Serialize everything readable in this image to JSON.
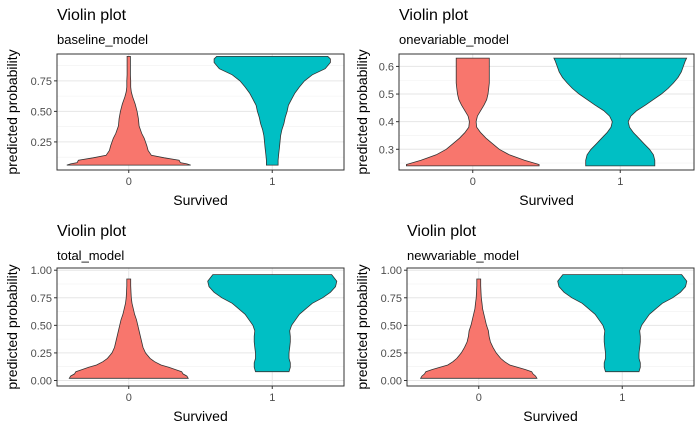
{
  "chart_data": [
    {
      "type": "violin",
      "title": "Violin plot",
      "subtitle": "baseline_model",
      "xlabel": "Survived",
      "ylabel": "predicted probability",
      "categories": [
        "0",
        "1"
      ],
      "ylim": [
        0.02,
        0.97
      ],
      "yticks": [
        0.25,
        0.5,
        0.75
      ],
      "ytick_labels": [
        "0.25",
        "0.50",
        "0.75"
      ],
      "grid": true,
      "colors": [
        "#F8766D",
        "#00BFC4"
      ],
      "violins": [
        {
          "category": "0",
          "y": [
            0.06,
            0.07,
            0.08,
            0.1,
            0.12,
            0.14,
            0.18,
            0.22,
            0.28,
            0.32,
            0.38,
            0.44,
            0.5,
            0.56,
            0.62,
            0.66,
            0.7,
            0.75,
            0.8,
            0.86,
            0.92,
            0.95
          ],
          "width": [
            0.96,
            0.9,
            0.8,
            0.78,
            0.55,
            0.35,
            0.3,
            0.28,
            0.24,
            0.2,
            0.16,
            0.15,
            0.13,
            0.1,
            0.06,
            0.04,
            0.03,
            0.03,
            0.025,
            0.025,
            0.025,
            0.025
          ]
        },
        {
          "category": "1",
          "y": [
            0.06,
            0.1,
            0.15,
            0.2,
            0.25,
            0.3,
            0.35,
            0.4,
            0.45,
            0.5,
            0.55,
            0.6,
            0.65,
            0.7,
            0.75,
            0.8,
            0.85,
            0.9,
            0.93,
            0.95
          ],
          "width": [
            0.09,
            0.09,
            0.1,
            0.11,
            0.12,
            0.13,
            0.15,
            0.18,
            0.2,
            0.23,
            0.25,
            0.3,
            0.35,
            0.42,
            0.5,
            0.62,
            0.82,
            0.9,
            0.9,
            0.86
          ]
        }
      ]
    },
    {
      "type": "violin",
      "title": "Violin plot",
      "subtitle": "onevariable_model",
      "xlabel": "Survived",
      "ylabel": "predicted probability",
      "categories": [
        "0",
        "1"
      ],
      "ylim": [
        0.225,
        0.645
      ],
      "yticks": [
        0.3,
        0.4,
        0.5,
        0.6
      ],
      "ytick_labels": [
        "0.3",
        "0.4",
        "0.5",
        "0.6"
      ],
      "grid": true,
      "colors": [
        "#F8766D",
        "#00BFC4"
      ],
      "violins": [
        {
          "category": "0",
          "y": [
            0.24,
            0.245,
            0.26,
            0.28,
            0.3,
            0.32,
            0.34,
            0.36,
            0.38,
            0.4,
            0.42,
            0.44,
            0.46,
            0.48,
            0.5,
            0.52,
            0.54,
            0.56,
            0.58,
            0.6,
            0.62,
            0.63
          ],
          "width": [
            1.0,
            1.0,
            0.78,
            0.55,
            0.4,
            0.3,
            0.2,
            0.12,
            0.06,
            0.05,
            0.07,
            0.12,
            0.17,
            0.21,
            0.23,
            0.24,
            0.25,
            0.25,
            0.25,
            0.25,
            0.25,
            0.25
          ]
        },
        {
          "category": "1",
          "y": [
            0.24,
            0.26,
            0.28,
            0.3,
            0.32,
            0.34,
            0.36,
            0.38,
            0.4,
            0.42,
            0.44,
            0.46,
            0.48,
            0.5,
            0.52,
            0.54,
            0.56,
            0.58,
            0.6,
            0.62,
            0.63
          ],
          "width": [
            0.52,
            0.52,
            0.5,
            0.44,
            0.36,
            0.28,
            0.2,
            0.14,
            0.12,
            0.16,
            0.25,
            0.38,
            0.5,
            0.62,
            0.72,
            0.8,
            0.87,
            0.92,
            0.95,
            0.98,
            1.0
          ]
        }
      ]
    },
    {
      "type": "violin",
      "title": "Violin plot",
      "subtitle": "total_model",
      "xlabel": "Survived",
      "ylabel": "predicted probability",
      "categories": [
        "0",
        "1"
      ],
      "ylim": [
        -0.05,
        1.02
      ],
      "yticks": [
        0,
        0.25,
        0.5,
        0.75,
        1
      ],
      "ytick_labels": [
        "0.00",
        "0.25",
        "0.50",
        "0.75",
        "1.00"
      ],
      "grid": true,
      "colors": [
        "#F8766D",
        "#00BFC4"
      ],
      "violins": [
        {
          "category": "0",
          "y": [
            0.02,
            0.04,
            0.06,
            0.08,
            0.1,
            0.12,
            0.14,
            0.17,
            0.2,
            0.25,
            0.3,
            0.35,
            0.4,
            0.45,
            0.5,
            0.55,
            0.6,
            0.65,
            0.7,
            0.75,
            0.8,
            0.86,
            0.92
          ],
          "width": [
            0.92,
            0.9,
            0.84,
            0.82,
            0.72,
            0.62,
            0.5,
            0.4,
            0.33,
            0.26,
            0.22,
            0.2,
            0.18,
            0.16,
            0.14,
            0.12,
            0.09,
            0.07,
            0.05,
            0.04,
            0.035,
            0.03,
            0.03
          ]
        },
        {
          "category": "1",
          "y": [
            0.08,
            0.12,
            0.16,
            0.2,
            0.25,
            0.3,
            0.35,
            0.4,
            0.45,
            0.5,
            0.55,
            0.6,
            0.65,
            0.7,
            0.75,
            0.8,
            0.85,
            0.9,
            0.93,
            0.96
          ],
          "width": [
            0.26,
            0.28,
            0.28,
            0.26,
            0.26,
            0.27,
            0.28,
            0.28,
            0.27,
            0.3,
            0.36,
            0.42,
            0.52,
            0.62,
            0.78,
            0.9,
            0.98,
            1.0,
            0.96,
            0.92
          ]
        }
      ]
    },
    {
      "type": "violin",
      "title": "Violin plot",
      "subtitle": "newvariable_model",
      "xlabel": "Survived",
      "ylabel": "predicted probability",
      "categories": [
        "0",
        "1"
      ],
      "ylim": [
        -0.05,
        1.02
      ],
      "yticks": [
        0,
        0.25,
        0.5,
        0.75,
        1
      ],
      "ytick_labels": [
        "0.00",
        "0.25",
        "0.50",
        "0.75",
        "1.00"
      ],
      "grid": true,
      "colors": [
        "#F8766D",
        "#00BFC4"
      ],
      "violins": [
        {
          "category": "0",
          "y": [
            0.02,
            0.04,
            0.06,
            0.08,
            0.1,
            0.12,
            0.14,
            0.17,
            0.2,
            0.25,
            0.3,
            0.35,
            0.4,
            0.45,
            0.5,
            0.55,
            0.6,
            0.65,
            0.7,
            0.75,
            0.8,
            0.86,
            0.92
          ],
          "width": [
            0.9,
            0.88,
            0.84,
            0.82,
            0.72,
            0.6,
            0.48,
            0.4,
            0.34,
            0.27,
            0.22,
            0.18,
            0.16,
            0.15,
            0.12,
            0.1,
            0.08,
            0.06,
            0.05,
            0.04,
            0.035,
            0.03,
            0.03
          ]
        },
        {
          "category": "1",
          "y": [
            0.08,
            0.12,
            0.16,
            0.2,
            0.25,
            0.3,
            0.35,
            0.4,
            0.45,
            0.5,
            0.55,
            0.6,
            0.65,
            0.7,
            0.75,
            0.8,
            0.85,
            0.9,
            0.93,
            0.96
          ],
          "width": [
            0.26,
            0.28,
            0.28,
            0.26,
            0.26,
            0.27,
            0.28,
            0.28,
            0.27,
            0.3,
            0.36,
            0.42,
            0.52,
            0.62,
            0.78,
            0.9,
            0.98,
            1.0,
            0.96,
            0.92
          ]
        }
      ]
    }
  ]
}
